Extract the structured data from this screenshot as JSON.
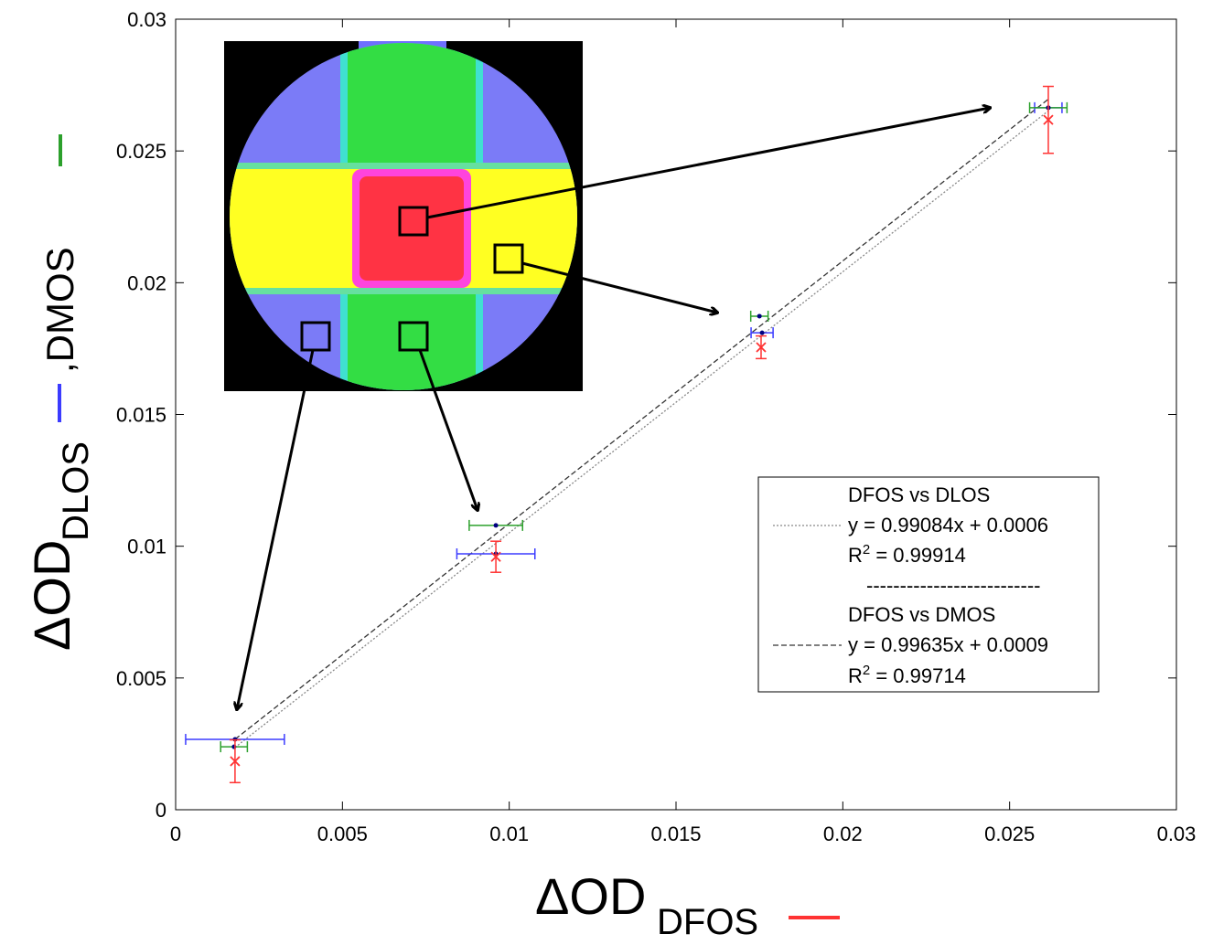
{
  "chart_data": {
    "type": "errorbar-scatter",
    "xlabel": {
      "text": "ΔOD",
      "subscript": "DFOS"
    },
    "ylabel": {
      "text": "ΔOD",
      "subscript": "DLOS",
      "tail": ",DMOS"
    },
    "xlim": [
      0,
      0.03
    ],
    "xticks": [
      0,
      0.005,
      0.01,
      0.015,
      0.02,
      0.025,
      0.03
    ],
    "ylim": [
      0,
      0.03
    ],
    "yticks": [
      0,
      0.005,
      0.01,
      0.015,
      0.02,
      0.025,
      0.03
    ],
    "series": [
      {
        "color": "#3b3bff",
        "marker": "dot",
        "x": [
          0.00178,
          0.0096,
          0.01758,
          0.02616
        ],
        "values": [
          0.00267,
          0.00971,
          0.0181,
          0.02664
        ],
        "xerr": [
          0.00148,
          0.00117,
          0.00033,
          0.00041
        ]
      },
      {
        "color": "#2ca02c",
        "marker": "dot",
        "x": [
          0.00175,
          0.0096,
          0.0175,
          0.02616
        ],
        "values": [
          0.00239,
          0.01079,
          0.01873,
          0.02664
        ],
        "xerr": [
          0.0004,
          0.0008,
          0.00026,
          0.00056
        ]
      },
      {
        "color": "#ff3333",
        "marker": "x",
        "x": [
          0.00178,
          0.0096,
          0.01755,
          0.02616
        ],
        "values": [
          0.00184,
          0.0096,
          0.01755,
          0.02618
        ],
        "yerr": [
          0.00081,
          0.00059,
          0.00043,
          0.00127
        ]
      }
    ],
    "fits": [
      {
        "name": "DFOS vs DLOS",
        "equation": "y = 0.99084x + 0.0006",
        "r2": {
          "base": "R",
          "sup": "2",
          "rest": " = 0.99914"
        },
        "slope": 0.99084,
        "intercept": 0.0006,
        "x_range": [
          0.00178,
          0.02616
        ],
        "style": "dotted",
        "color": "#888888"
      },
      {
        "name": "DFOS vs DMOS",
        "equation": "y = 0.99635x + 0.0009",
        "r2": {
          "base": "R",
          "sup": "2",
          "rest": " = 0.99714"
        },
        "slope": 0.99635,
        "intercept": 0.0009,
        "x_range": [
          0.00178,
          0.02616
        ],
        "style": "dashed",
        "color": "#333333"
      }
    ],
    "legend_separator": "--------------------------"
  }
}
